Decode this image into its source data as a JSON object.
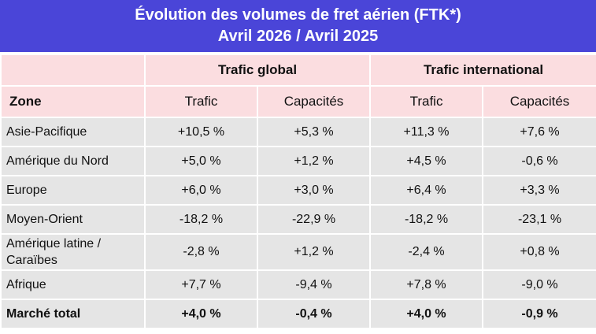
{
  "title": {
    "line1": "Évolution des volumes de fret aérien (FTK*)",
    "line2": "Avril 2026 / Avril 2025"
  },
  "groups": {
    "global": "Trafic global",
    "international": "Trafic international"
  },
  "columns": {
    "zone": "Zone",
    "g_trafic": "Trafic",
    "g_capacites": "Capacités",
    "i_trafic": "Trafic",
    "i_capacites": "Capacités"
  },
  "rows": [
    {
      "zone": "Asie-Pacifique",
      "g_trafic": "+10,5 %",
      "g_capacites": "+5,3 %",
      "i_trafic": "+11,3 %",
      "i_capacites": "+7,6 %"
    },
    {
      "zone": "Amérique du Nord",
      "g_trafic": "+5,0 %",
      "g_capacites": "+1,2 %",
      "i_trafic": "+4,5 %",
      "i_capacites": "-0,6 %"
    },
    {
      "zone": "Europe",
      "g_trafic": "+6,0 %",
      "g_capacites": "+3,0 %",
      "i_trafic": "+6,4 %",
      "i_capacites": "+3,3 %"
    },
    {
      "zone": "Moyen-Orient",
      "g_trafic": "-18,2 %",
      "g_capacites": "-22,9 %",
      "i_trafic": "-18,2 %",
      "i_capacites": "-23,1 %"
    },
    {
      "zone_line1": "Amérique latine /",
      "zone_line2": "Caraïbes",
      "g_trafic": "-2,8 %",
      "g_capacites": "+1,2 %",
      "i_trafic": "-2,4 %",
      "i_capacites": "+0,8 %"
    },
    {
      "zone": "Afrique",
      "g_trafic": "+7,7 %",
      "g_capacites": "-9,4 %",
      "i_trafic": "+7,8 %",
      "i_capacites": "-9,0 %"
    },
    {
      "zone": "Marché total",
      "g_trafic": "+4,0 %",
      "g_capacites": "-0,4 %",
      "i_trafic": "+4,0 %",
      "i_capacites": "-0,9 %"
    }
  ],
  "colors": {
    "title_bg": "#4a45d8",
    "header_bg": "#fbdde0",
    "row_bg": "#e5e5e5"
  }
}
